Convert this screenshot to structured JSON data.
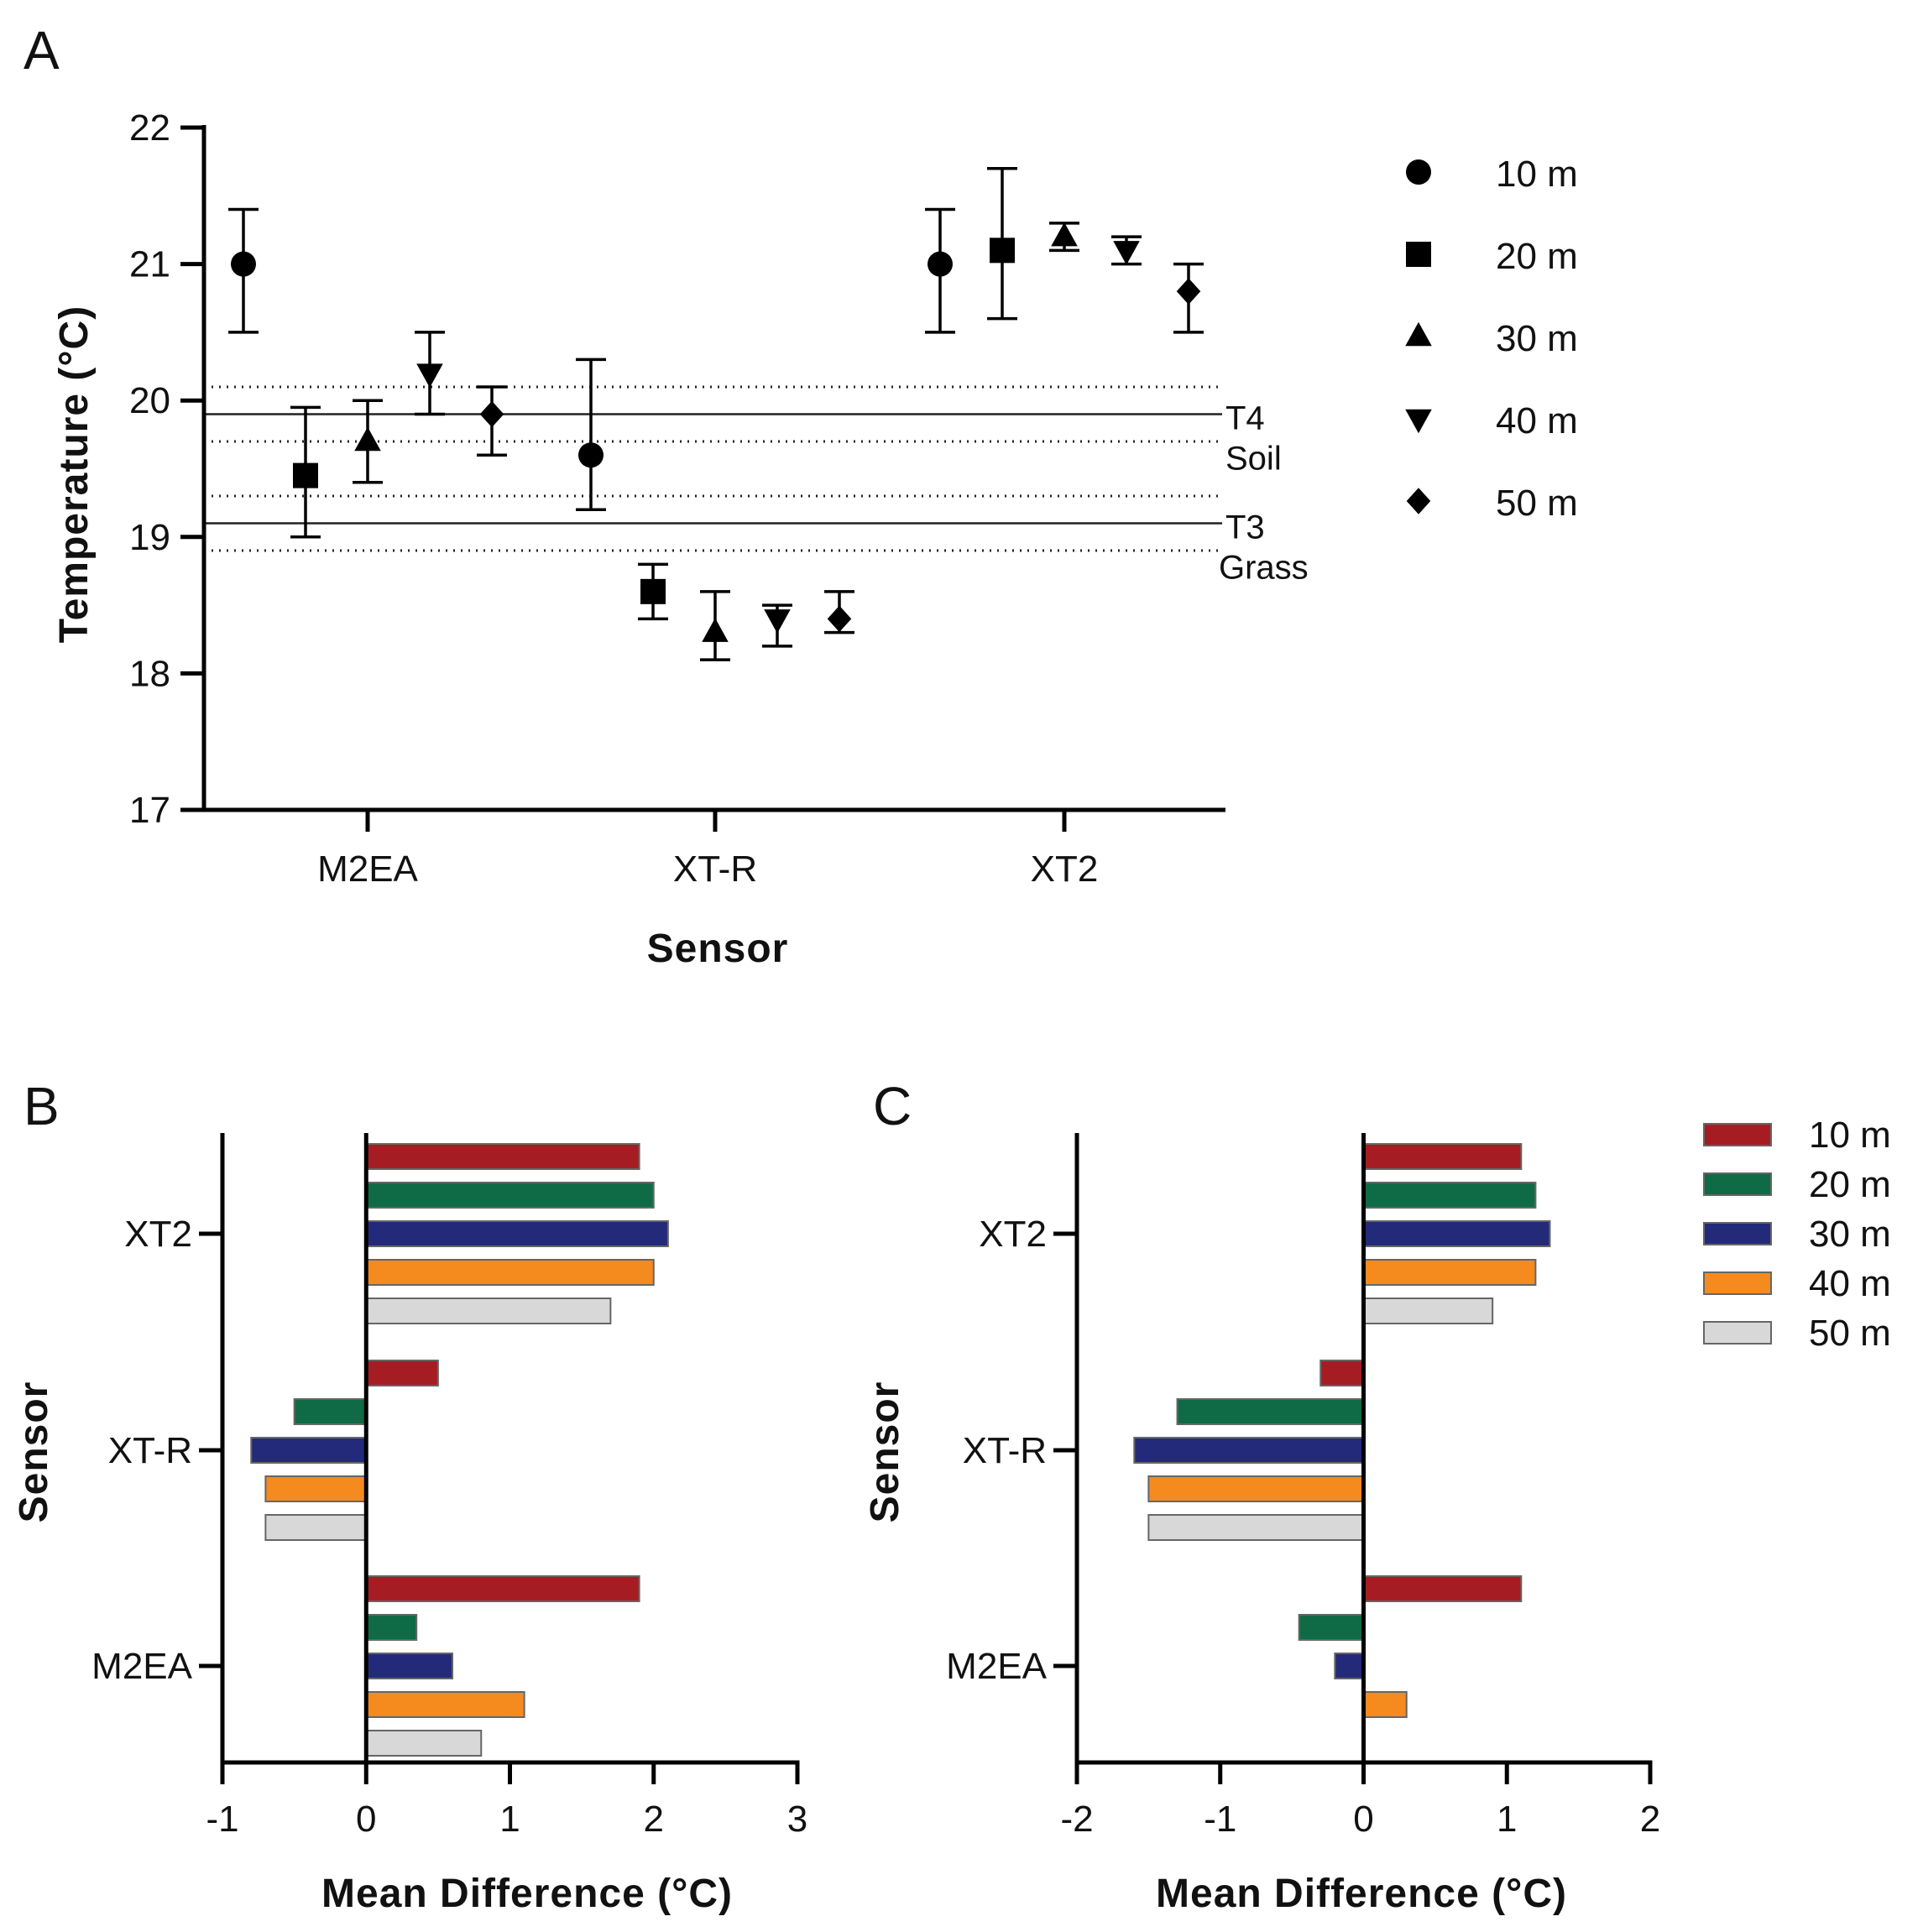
{
  "chart_data": [
    {
      "panel": "A",
      "type": "scatter",
      "title": "",
      "xlabel": "Sensor",
      "ylabel": "Temperature (°C)",
      "categories": [
        "M2EA",
        "XT-R",
        "XT2"
      ],
      "ylim": [
        17,
        22
      ],
      "yticks": [
        "17",
        "18",
        "19",
        "20",
        "21",
        "22"
      ],
      "grid": false,
      "legend_position": "right",
      "series": [
        {
          "name": "10 m",
          "marker": "circle",
          "values": [
            21.0,
            19.6,
            21.0
          ],
          "err_low": [
            20.5,
            19.2,
            20.5
          ],
          "err_high": [
            21.4,
            20.3,
            21.4
          ]
        },
        {
          "name": "20 m",
          "marker": "square",
          "values": [
            19.45,
            18.6,
            21.1
          ],
          "err_low": [
            19.0,
            18.4,
            20.6
          ],
          "err_high": [
            19.95,
            18.8,
            21.7
          ]
        },
        {
          "name": "30 m",
          "marker": "triangle-up",
          "values": [
            19.7,
            18.3,
            21.2
          ],
          "err_low": [
            19.4,
            18.1,
            21.1
          ],
          "err_high": [
            20.0,
            18.6,
            21.3
          ]
        },
        {
          "name": "40 m",
          "marker": "triangle-down",
          "values": [
            20.2,
            18.4,
            21.1
          ],
          "err_low": [
            19.9,
            18.2,
            21.0
          ],
          "err_high": [
            20.5,
            18.5,
            21.2
          ]
        },
        {
          "name": "50 m",
          "marker": "diamond",
          "values": [
            19.9,
            18.4,
            20.8
          ],
          "err_low": [
            19.6,
            18.3,
            20.5
          ],
          "err_high": [
            20.1,
            18.6,
            21.0
          ]
        }
      ],
      "reference_lines": [
        {
          "label": "T4",
          "sublabel": "Soil",
          "value": 19.9,
          "band": [
            19.7,
            20.1
          ]
        },
        {
          "label": "T3",
          "sublabel": "Grass",
          "value": 19.1,
          "band": [
            18.9,
            19.3
          ]
        }
      ]
    },
    {
      "panel": "B",
      "type": "bar",
      "orientation": "horizontal",
      "title": "",
      "xlabel": "Mean Difference (°C)",
      "ylabel": "Sensor",
      "categories": [
        "XT2",
        "XT-R",
        "M2EA"
      ],
      "xlim": [
        -1,
        3
      ],
      "xticks": [
        "-1",
        "0",
        "1",
        "2",
        "3"
      ],
      "series": [
        {
          "name": "10 m",
          "values": [
            1.9,
            0.5,
            1.9
          ]
        },
        {
          "name": "20 m",
          "values": [
            2.0,
            -0.5,
            0.35
          ]
        },
        {
          "name": "30 m",
          "values": [
            2.1,
            -0.8,
            0.6
          ]
        },
        {
          "name": "40 m",
          "values": [
            2.0,
            -0.7,
            1.1
          ]
        },
        {
          "name": "50 m",
          "values": [
            1.7,
            -0.7,
            0.8
          ]
        }
      ]
    },
    {
      "panel": "C",
      "type": "bar",
      "orientation": "horizontal",
      "title": "",
      "xlabel": "Mean Difference (°C)",
      "ylabel": "Sensor",
      "categories": [
        "XT2",
        "XT-R",
        "M2EA"
      ],
      "xlim": [
        -2,
        2
      ],
      "xticks": [
        "-2",
        "-1",
        "0",
        "1",
        "2"
      ],
      "legend_position": "right",
      "series": [
        {
          "name": "10 m",
          "values": [
            1.1,
            -0.3,
            1.1
          ]
        },
        {
          "name": "20 m",
          "values": [
            1.2,
            -1.3,
            -0.45
          ]
        },
        {
          "name": "30 m",
          "values": [
            1.3,
            -1.6,
            -0.2
          ]
        },
        {
          "name": "40 m",
          "values": [
            1.2,
            -1.5,
            0.3
          ]
        },
        {
          "name": "50 m",
          "values": [
            0.9,
            -1.5,
            0.0
          ]
        }
      ]
    }
  ],
  "colors": {
    "10 m": "#a51d23",
    "20 m": "#0f6b45",
    "30 m": "#242a7a",
    "40 m": "#f58a1f",
    "50 m": "#d8d8d8"
  }
}
